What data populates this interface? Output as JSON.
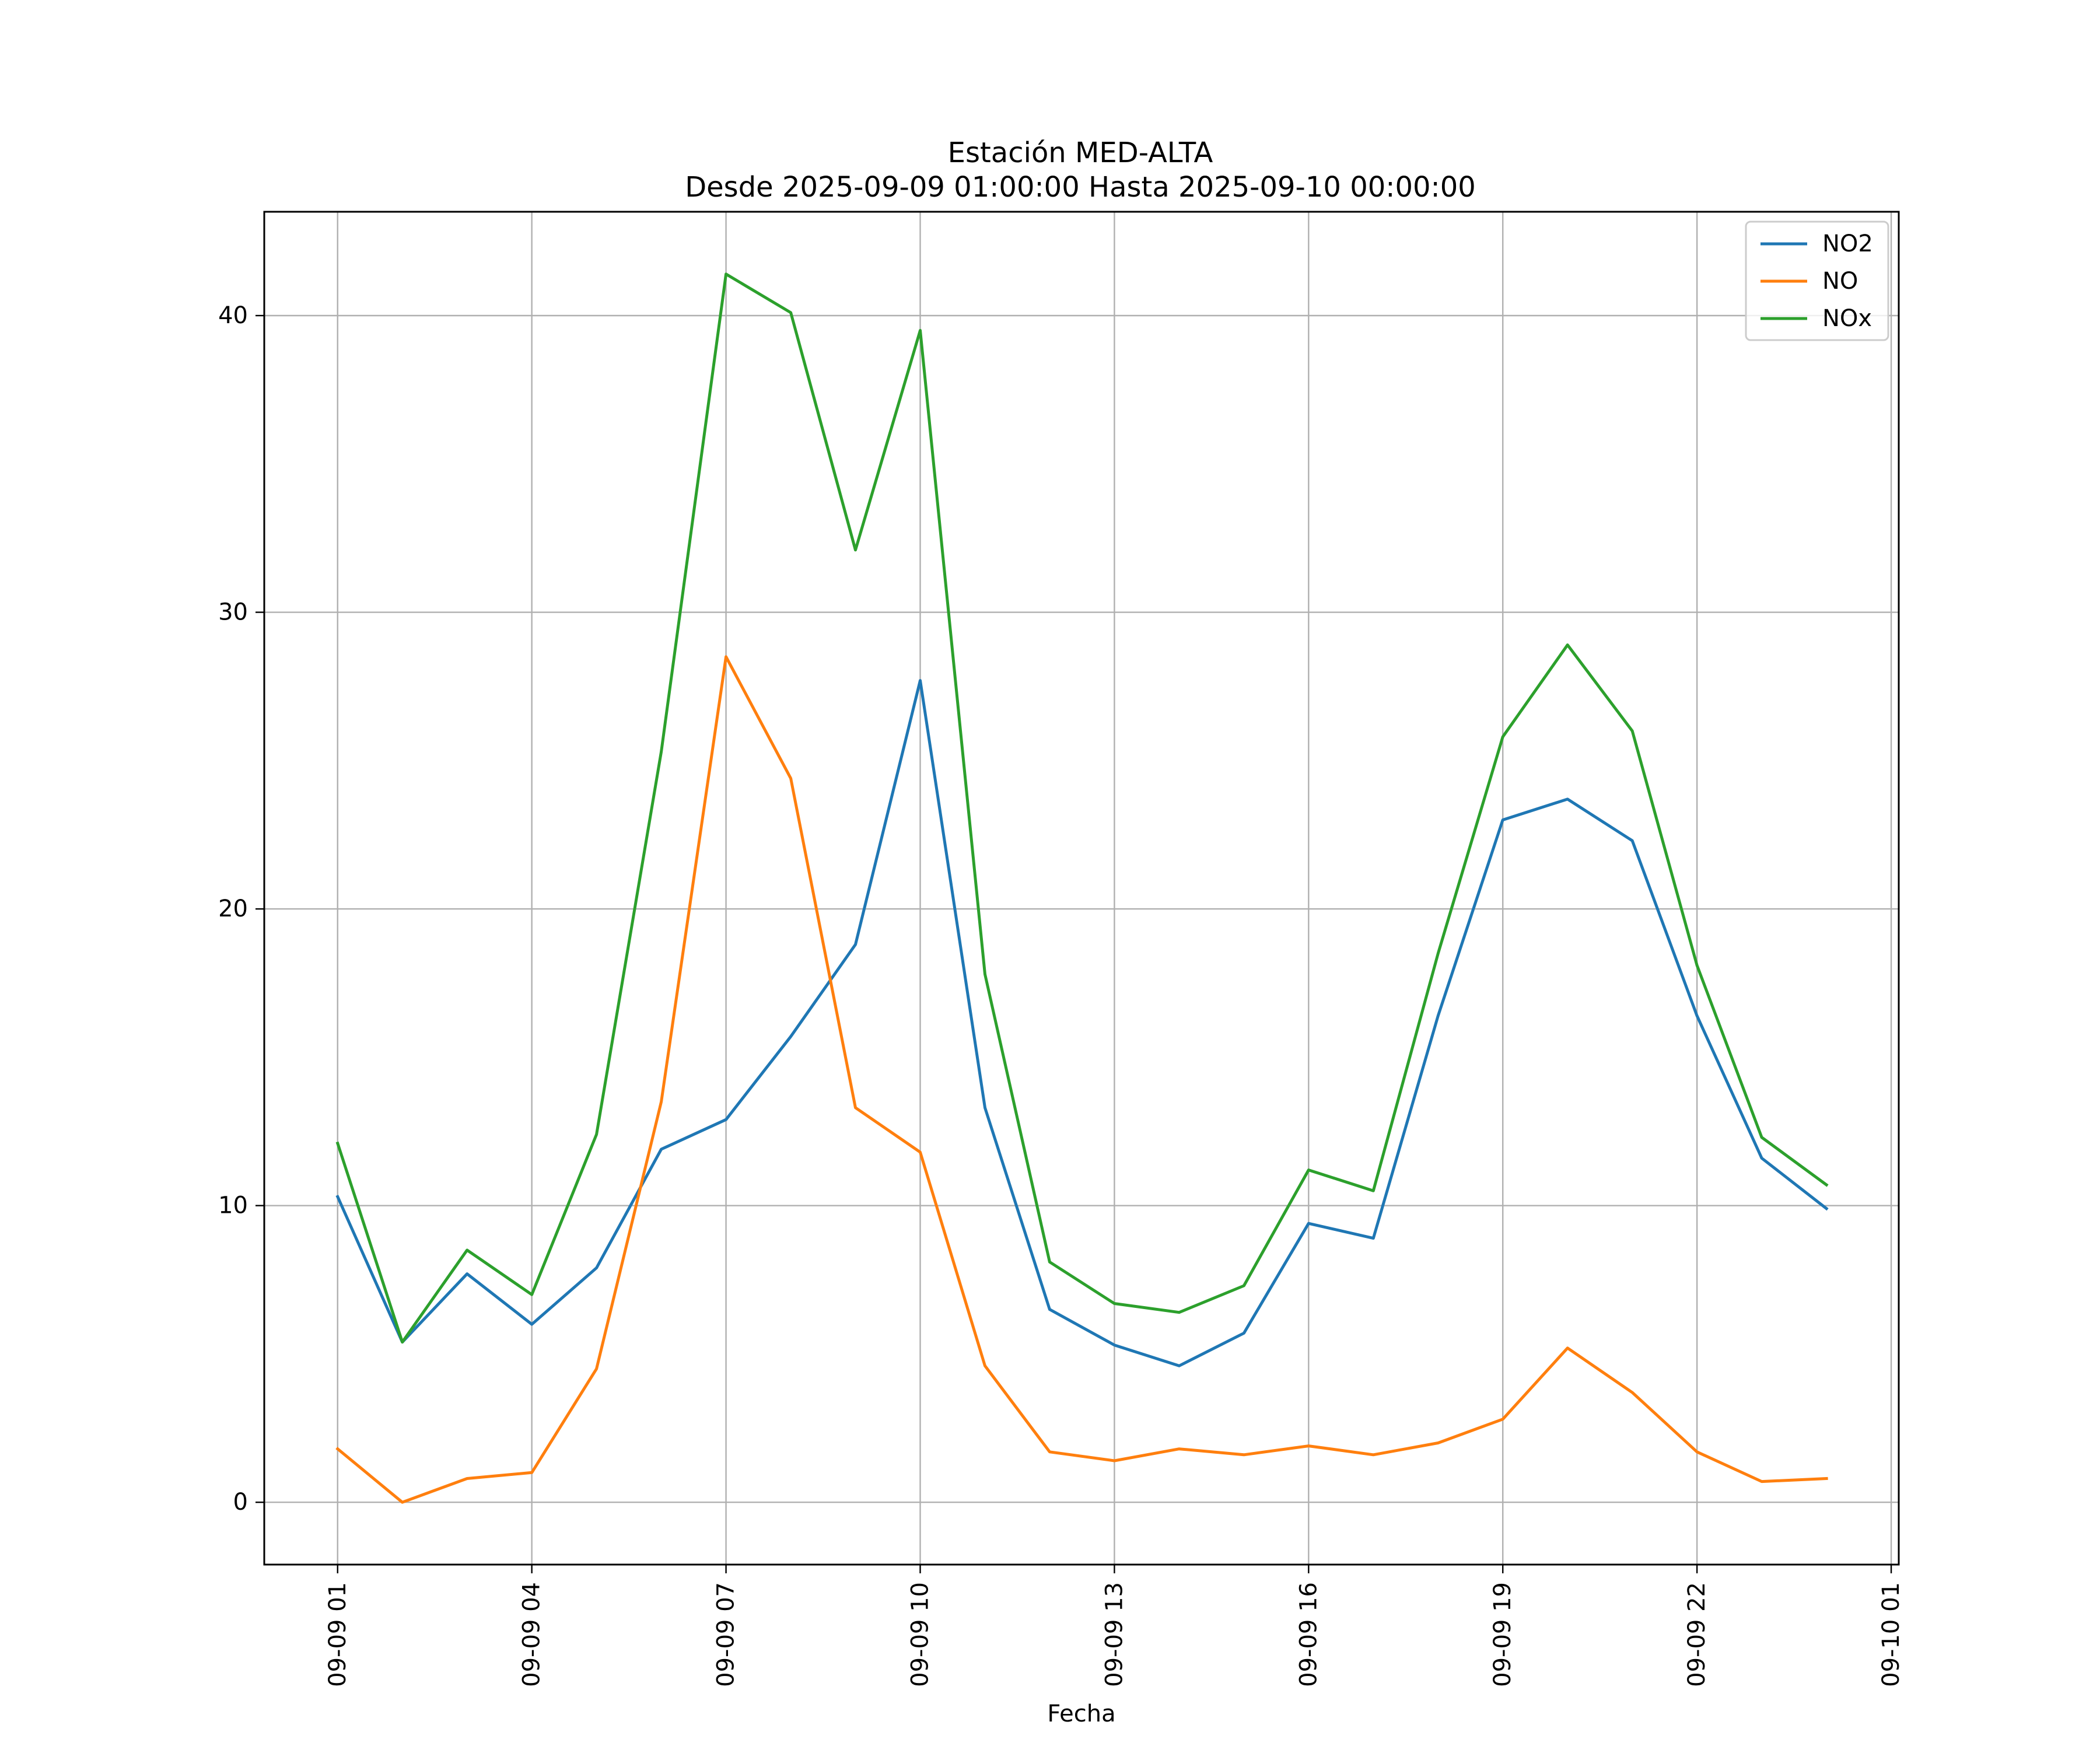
{
  "chart_data": {
    "type": "line",
    "title": "Estación MED-ALTA",
    "subtitle": "Desde 2025-09-09 01:00:00 Hasta 2025-09-10 00:00:00",
    "xlabel": "Fecha",
    "ylabel": "",
    "x": [
      "2025-09-09 01:00",
      "2025-09-09 02:00",
      "2025-09-09 03:00",
      "2025-09-09 04:00",
      "2025-09-09 05:00",
      "2025-09-09 06:00",
      "2025-09-09 07:00",
      "2025-09-09 08:00",
      "2025-09-09 09:00",
      "2025-09-09 10:00",
      "2025-09-09 11:00",
      "2025-09-09 12:00",
      "2025-09-09 13:00",
      "2025-09-09 14:00",
      "2025-09-09 15:00",
      "2025-09-09 16:00",
      "2025-09-09 17:00",
      "2025-09-09 18:00",
      "2025-09-09 19:00",
      "2025-09-09 20:00",
      "2025-09-09 21:00",
      "2025-09-09 22:00",
      "2025-09-09 23:00",
      "2025-09-10 00:00"
    ],
    "xlim": [
      "2025-09-08 23:52",
      "2025-09-10 01:07"
    ],
    "ylim": [
      -2.1,
      43.5
    ],
    "xticks": [
      "2025-09-09 01:00",
      "2025-09-09 04:00",
      "2025-09-09 07:00",
      "2025-09-09 10:00",
      "2025-09-09 13:00",
      "2025-09-09 16:00",
      "2025-09-09 19:00",
      "2025-09-09 22:00",
      "2025-09-10 01:00"
    ],
    "xtick_labels": [
      "09-09 01",
      "09-09 04",
      "09-09 07",
      "09-09 10",
      "09-09 13",
      "09-09 16",
      "09-09 19",
      "09-09 22",
      "09-10 01"
    ],
    "yticks": [
      0,
      10,
      20,
      30,
      40
    ],
    "ytick_labels": [
      "0",
      "10",
      "20",
      "30",
      "40"
    ],
    "grid": true,
    "legend_position": "top-right",
    "series": [
      {
        "name": "NO2",
        "color": "#1f77b4",
        "values": [
          10.3,
          5.4,
          7.7,
          6.0,
          7.9,
          11.9,
          12.9,
          15.7,
          18.8,
          27.7,
          13.3,
          6.5,
          5.3,
          4.6,
          5.7,
          9.4,
          8.9,
          16.4,
          23.0,
          23.7,
          22.3,
          16.4,
          11.6,
          9.9
        ]
      },
      {
        "name": "NO",
        "color": "#ff7f0e",
        "values": [
          1.8,
          0.0,
          0.8,
          1.0,
          4.5,
          13.5,
          28.5,
          24.4,
          13.3,
          11.8,
          4.6,
          1.7,
          1.4,
          1.8,
          1.6,
          1.9,
          1.6,
          2.0,
          2.8,
          5.2,
          3.7,
          1.7,
          0.7,
          0.8
        ]
      },
      {
        "name": "NOx",
        "color": "#2ca02c",
        "values": [
          12.1,
          5.4,
          8.5,
          7.0,
          12.4,
          25.3,
          41.4,
          40.1,
          32.1,
          39.5,
          17.8,
          8.1,
          6.7,
          6.4,
          7.3,
          11.2,
          10.5,
          18.5,
          25.8,
          28.9,
          26.0,
          18.1,
          12.3,
          10.7
        ]
      }
    ]
  }
}
